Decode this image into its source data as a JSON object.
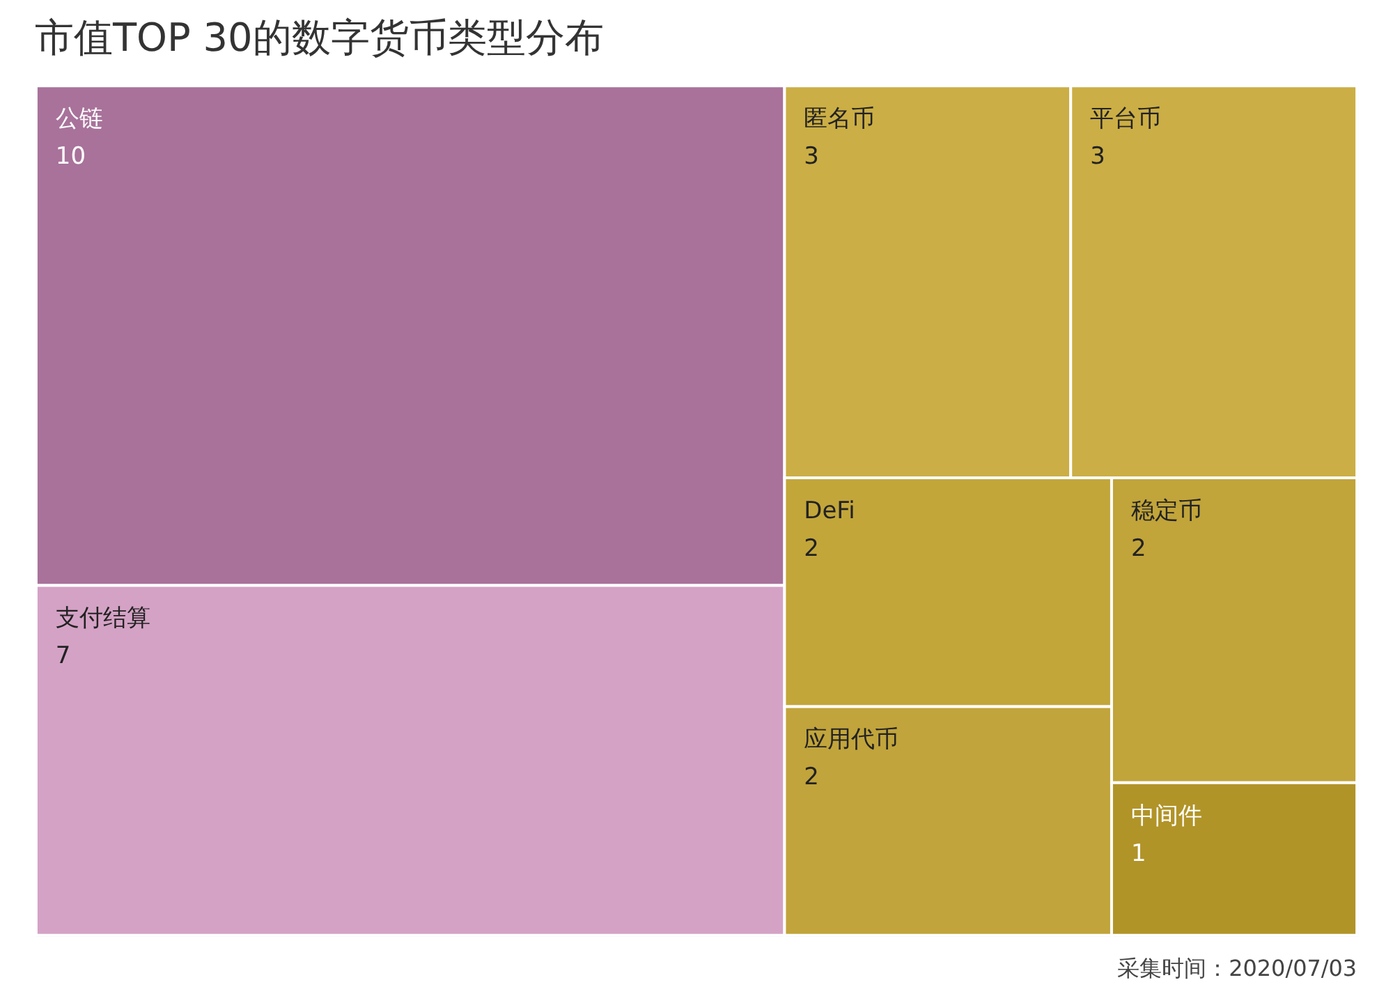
{
  "chart_data": {
    "type": "other",
    "title": "市值TOP 30的数字货币类型分布",
    "categories": [
      "公链",
      "支付结算",
      "匿名币",
      "平台币",
      "DeFi",
      "应用代币",
      "稳定币",
      "中间件"
    ],
    "values": [
      10,
      7,
      3,
      3,
      2,
      2,
      2,
      1
    ],
    "colors": [
      "#a8729a",
      "#d4a2c5",
      "#cbae45",
      "#cbae45",
      "#c3a63a",
      "#c1a43b",
      "#c1a43a",
      "#b19428"
    ],
    "data_labels": true,
    "annotations": [
      "采集时间：2020/07/03"
    ]
  }
}
